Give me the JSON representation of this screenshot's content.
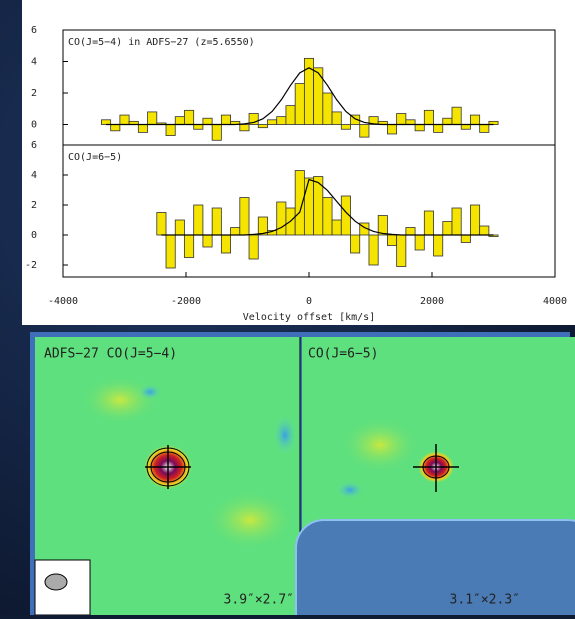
{
  "chart_data": [
    {
      "type": "bar",
      "title": "CO(J=5−4) in ADFS−27 (z=5.6550)",
      "x": [
        -3300,
        -3150,
        -3000,
        -2850,
        -2700,
        -2550,
        -2400,
        -2250,
        -2100,
        -1950,
        -1800,
        -1650,
        -1500,
        -1350,
        -1200,
        -1050,
        -900,
        -750,
        -600,
        -450,
        -300,
        -150,
        0,
        150,
        300,
        450,
        600,
        750,
        900,
        1050,
        1200,
        1350,
        1500,
        1650,
        1800,
        1950,
        2100,
        2250,
        2400,
        2550,
        2700,
        2850,
        3000
      ],
      "series": [
        {
          "color": "#f5e400",
          "values": [
            0.3,
            -0.4,
            0.6,
            0.2,
            -0.5,
            0.8,
            0.1,
            -0.7,
            0.5,
            0.9,
            -0.3,
            0.4,
            -1.0,
            0.6,
            0.2,
            -0.4,
            0.7,
            -0.2,
            0.3,
            0.5,
            1.2,
            2.6,
            4.2,
            3.6,
            2.0,
            0.8,
            -0.3,
            0.6,
            -0.8,
            0.5,
            0.2,
            -0.6,
            0.7,
            0.3,
            -0.4,
            0.9,
            -0.5,
            0.4,
            1.1,
            -0.3,
            0.6,
            -0.5,
            0.2
          ]
        },
        {
          "color": "#000000",
          "values": [
            0,
            0,
            0,
            0,
            0,
            0,
            0,
            0,
            0,
            0,
            0,
            0,
            0,
            0,
            0,
            0.04,
            0.13,
            0.36,
            0.83,
            1.57,
            2.49,
            3.28,
            3.6,
            3.28,
            2.49,
            1.57,
            0.83,
            0.36,
            0.13,
            0.04,
            0,
            0,
            0,
            0,
            0,
            0,
            0,
            0,
            0,
            0,
            0,
            0,
            0
          ]
        }
      ],
      "xlim": [
        -4000,
        4000
      ],
      "ylim": [
        -1.3,
        6
      ],
      "yticks": [
        0,
        2,
        4,
        6
      ]
    },
    {
      "type": "bar",
      "title": "CO(J=6−5)",
      "xlabel": "Velocity offset [km/s]",
      "x": [
        -2400,
        -2250,
        -2100,
        -1950,
        -1800,
        -1650,
        -1500,
        -1350,
        -1200,
        -1050,
        -900,
        -750,
        -600,
        -450,
        -300,
        -150,
        0,
        150,
        300,
        450,
        600,
        750,
        900,
        1050,
        1200,
        1350,
        1500,
        1650,
        1800,
        1950,
        2100,
        2250,
        2400,
        2550,
        2700,
        2850,
        3000
      ],
      "series": [
        {
          "color": "#f5e400",
          "values": [
            1.5,
            -2.2,
            1.0,
            -1.5,
            2.0,
            -0.8,
            1.8,
            -1.2,
            0.5,
            2.5,
            -1.6,
            1.2,
            0.3,
            2.2,
            1.8,
            4.3,
            3.8,
            3.9,
            2.5,
            1.0,
            2.6,
            -1.2,
            0.8,
            -2.0,
            1.3,
            -0.7,
            -2.1,
            0.5,
            -1.0,
            1.6,
            -1.4,
            0.9,
            1.8,
            -0.5,
            2.0,
            0.6,
            -0.1
          ]
        },
        {
          "color": "#000000",
          "values": [
            0,
            0,
            0,
            0,
            0,
            0,
            0,
            0,
            0,
            0,
            0.04,
            0.1,
            0.24,
            0.5,
            0.92,
            1.52,
            3.7,
            3.5,
            2.97,
            2.24,
            1.52,
            0.92,
            0.5,
            0.24,
            0.1,
            0.04,
            0,
            0,
            0,
            0,
            0,
            0,
            0,
            0,
            0,
            0,
            0
          ]
        }
      ],
      "xlim": [
        -4000,
        4000
      ],
      "xticks": [
        -4000,
        -2000,
        0,
        2000,
        4000
      ],
      "ylim": [
        -2.8,
        6
      ],
      "yticks": [
        -2,
        0,
        2,
        4,
        6
      ]
    }
  ],
  "maps": [
    {
      "label": "ADFS−27 CO(J=5−4)",
      "beam": "3.9″×2.7″"
    },
    {
      "label": "CO(J=6−5)",
      "beam": "3.1″×2.3″"
    }
  ]
}
